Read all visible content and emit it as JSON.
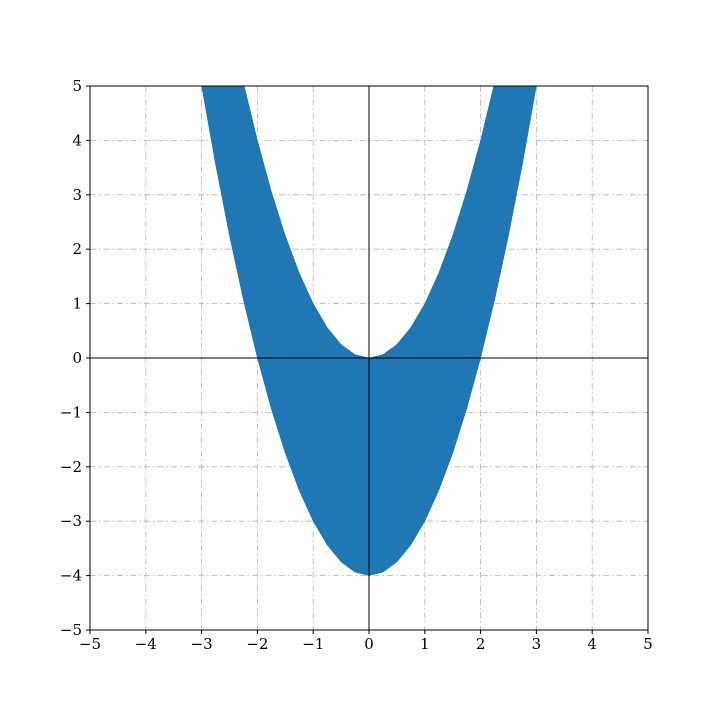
{
  "chart_data": {
    "type": "area",
    "title": "",
    "xlabel": "",
    "ylabel": "",
    "xlim": [
      -5,
      5
    ],
    "ylim": [
      -5,
      5
    ],
    "xticks": [
      -5,
      -4,
      -3,
      -2,
      -1,
      0,
      1,
      2,
      3,
      4,
      5
    ],
    "yticks": [
      -5,
      -4,
      -3,
      -2,
      -1,
      0,
      1,
      2,
      3,
      4,
      5
    ],
    "xtick_labels": [
      "−5",
      "−4",
      "−3",
      "−2",
      "−1",
      "0",
      "1",
      "2",
      "3",
      "4",
      "5"
    ],
    "ytick_labels": [
      "−5",
      "−4",
      "−3",
      "−2",
      "−1",
      "0",
      "1",
      "2",
      "3",
      "4",
      "5"
    ],
    "grid": true,
    "grid_style": "dashdot",
    "axis_lines_through_origin": true,
    "fill_color": "#1f77b4",
    "series": [
      {
        "x": [
          -3.0,
          -2.75,
          -2.5,
          -2.25,
          -2.0,
          -1.75,
          -1.5,
          -1.25,
          -1.0,
          -0.75,
          -0.5,
          -0.25,
          0.0,
          0.25,
          0.5,
          0.75,
          1.0,
          1.25,
          1.5,
          1.75,
          2.0,
          2.25,
          2.5,
          2.75,
          3.0
        ],
        "y_upper": [
          9.0,
          7.5625,
          6.25,
          5.0625,
          4.0,
          3.0625,
          2.25,
          1.5625,
          1.0,
          0.5625,
          0.25,
          0.0625,
          0.0,
          0.0625,
          0.25,
          0.5625,
          1.0,
          1.5625,
          2.25,
          3.0625,
          4.0,
          5.0625,
          6.25,
          7.5625,
          9.0
        ],
        "y_lower": [
          5.0,
          3.5625,
          2.25,
          1.0625,
          0.0,
          -0.9375,
          -1.75,
          -2.4375,
          -3.0,
          -3.4375,
          -3.75,
          -3.9375,
          -4.0,
          -3.9375,
          -3.75,
          -3.4375,
          -3.0,
          -2.4375,
          -1.75,
          -0.9375,
          0.0,
          1.0625,
          2.25,
          3.5625,
          5.0
        ]
      }
    ]
  }
}
